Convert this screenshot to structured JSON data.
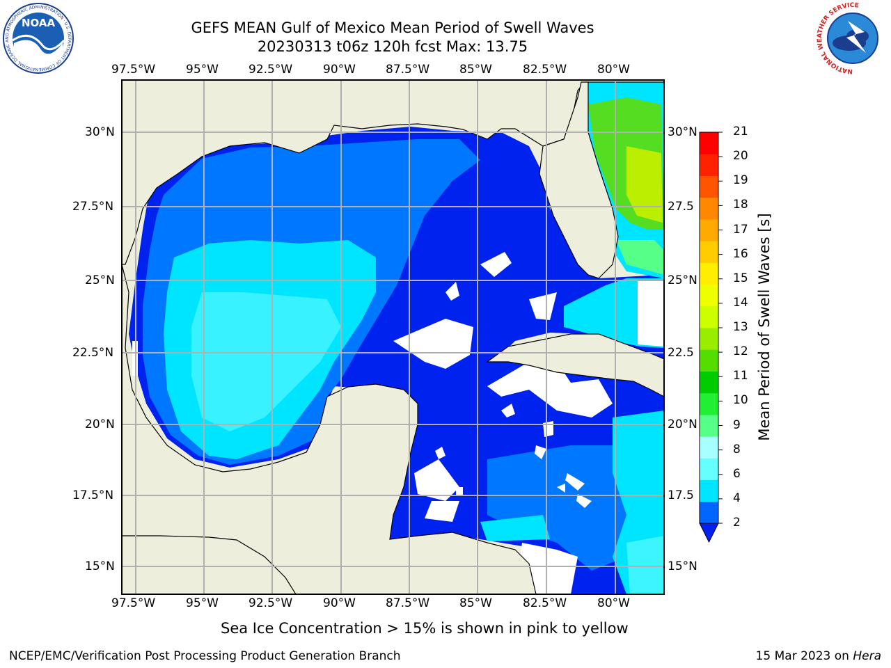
{
  "header": {
    "title_line1": "GEFS MEAN Gulf of Mexico Mean Period of Swell Waves",
    "title_line2": "20230313 t06z 120h fcst   Max: 13.75"
  },
  "map": {
    "lon_labels": [
      "97.5°W",
      "95°W",
      "92.5°W",
      "90°W",
      "87.5°W",
      "85°W",
      "82.5°W",
      "80°W"
    ],
    "lat_labels_left": [
      "30°N",
      "27.5°N",
      "25°N",
      "22.5°N",
      "20°N",
      "17.5°N",
      "15°N"
    ],
    "lat_labels_right": [
      "30°N",
      "27.5",
      "25°N",
      "22.5",
      "20°N",
      "17.5",
      "15°N"
    ]
  },
  "colorbar": {
    "label": "Mean Period of Swell Waves [s]",
    "ticks": [
      "21",
      "20",
      "19",
      "18",
      "17",
      "16",
      "15",
      "14",
      "13",
      "12",
      "11",
      "10",
      "9",
      "8",
      "6",
      "4",
      "2"
    ],
    "colors": [
      "#0066ff",
      "#00e5ff",
      "#66ffff",
      "#a8ffff",
      "#55ff88",
      "#22ee33",
      "#00cc00",
      "#55dd00",
      "#99ee00",
      "#ccff00",
      "#eeff00",
      "#ffee00",
      "#ffcc00",
      "#ffaa00",
      "#ff8800",
      "#ff5500",
      "#ff2200",
      "#ff0000"
    ],
    "extend_color": "#0022ee"
  },
  "notes": {
    "sea_ice": "Sea Ice Concentration > 15% is shown in pink to yellow"
  },
  "footer": {
    "left": "NCEP/EMC/Verification Post Processing Product Generation Branch",
    "date": "15 Mar 2023 on ",
    "host": "Hera"
  },
  "logos": {
    "noaa": {
      "text": "NOAA",
      "ring_text": "NATIONAL OCEANIC AND ATMOSPHERIC ADMINISTRATION · U.S. DEPARTMENT OF COMMERCE"
    },
    "nws": {
      "ring_text": "NATIONAL WEATHER SERVICE"
    }
  },
  "colors": {
    "land": "#eeeedd",
    "deep_blue": "#0022ee",
    "mid_blue": "#0077ff",
    "light_blue": "#00e5ff",
    "grid": "#b0b0b0"
  }
}
